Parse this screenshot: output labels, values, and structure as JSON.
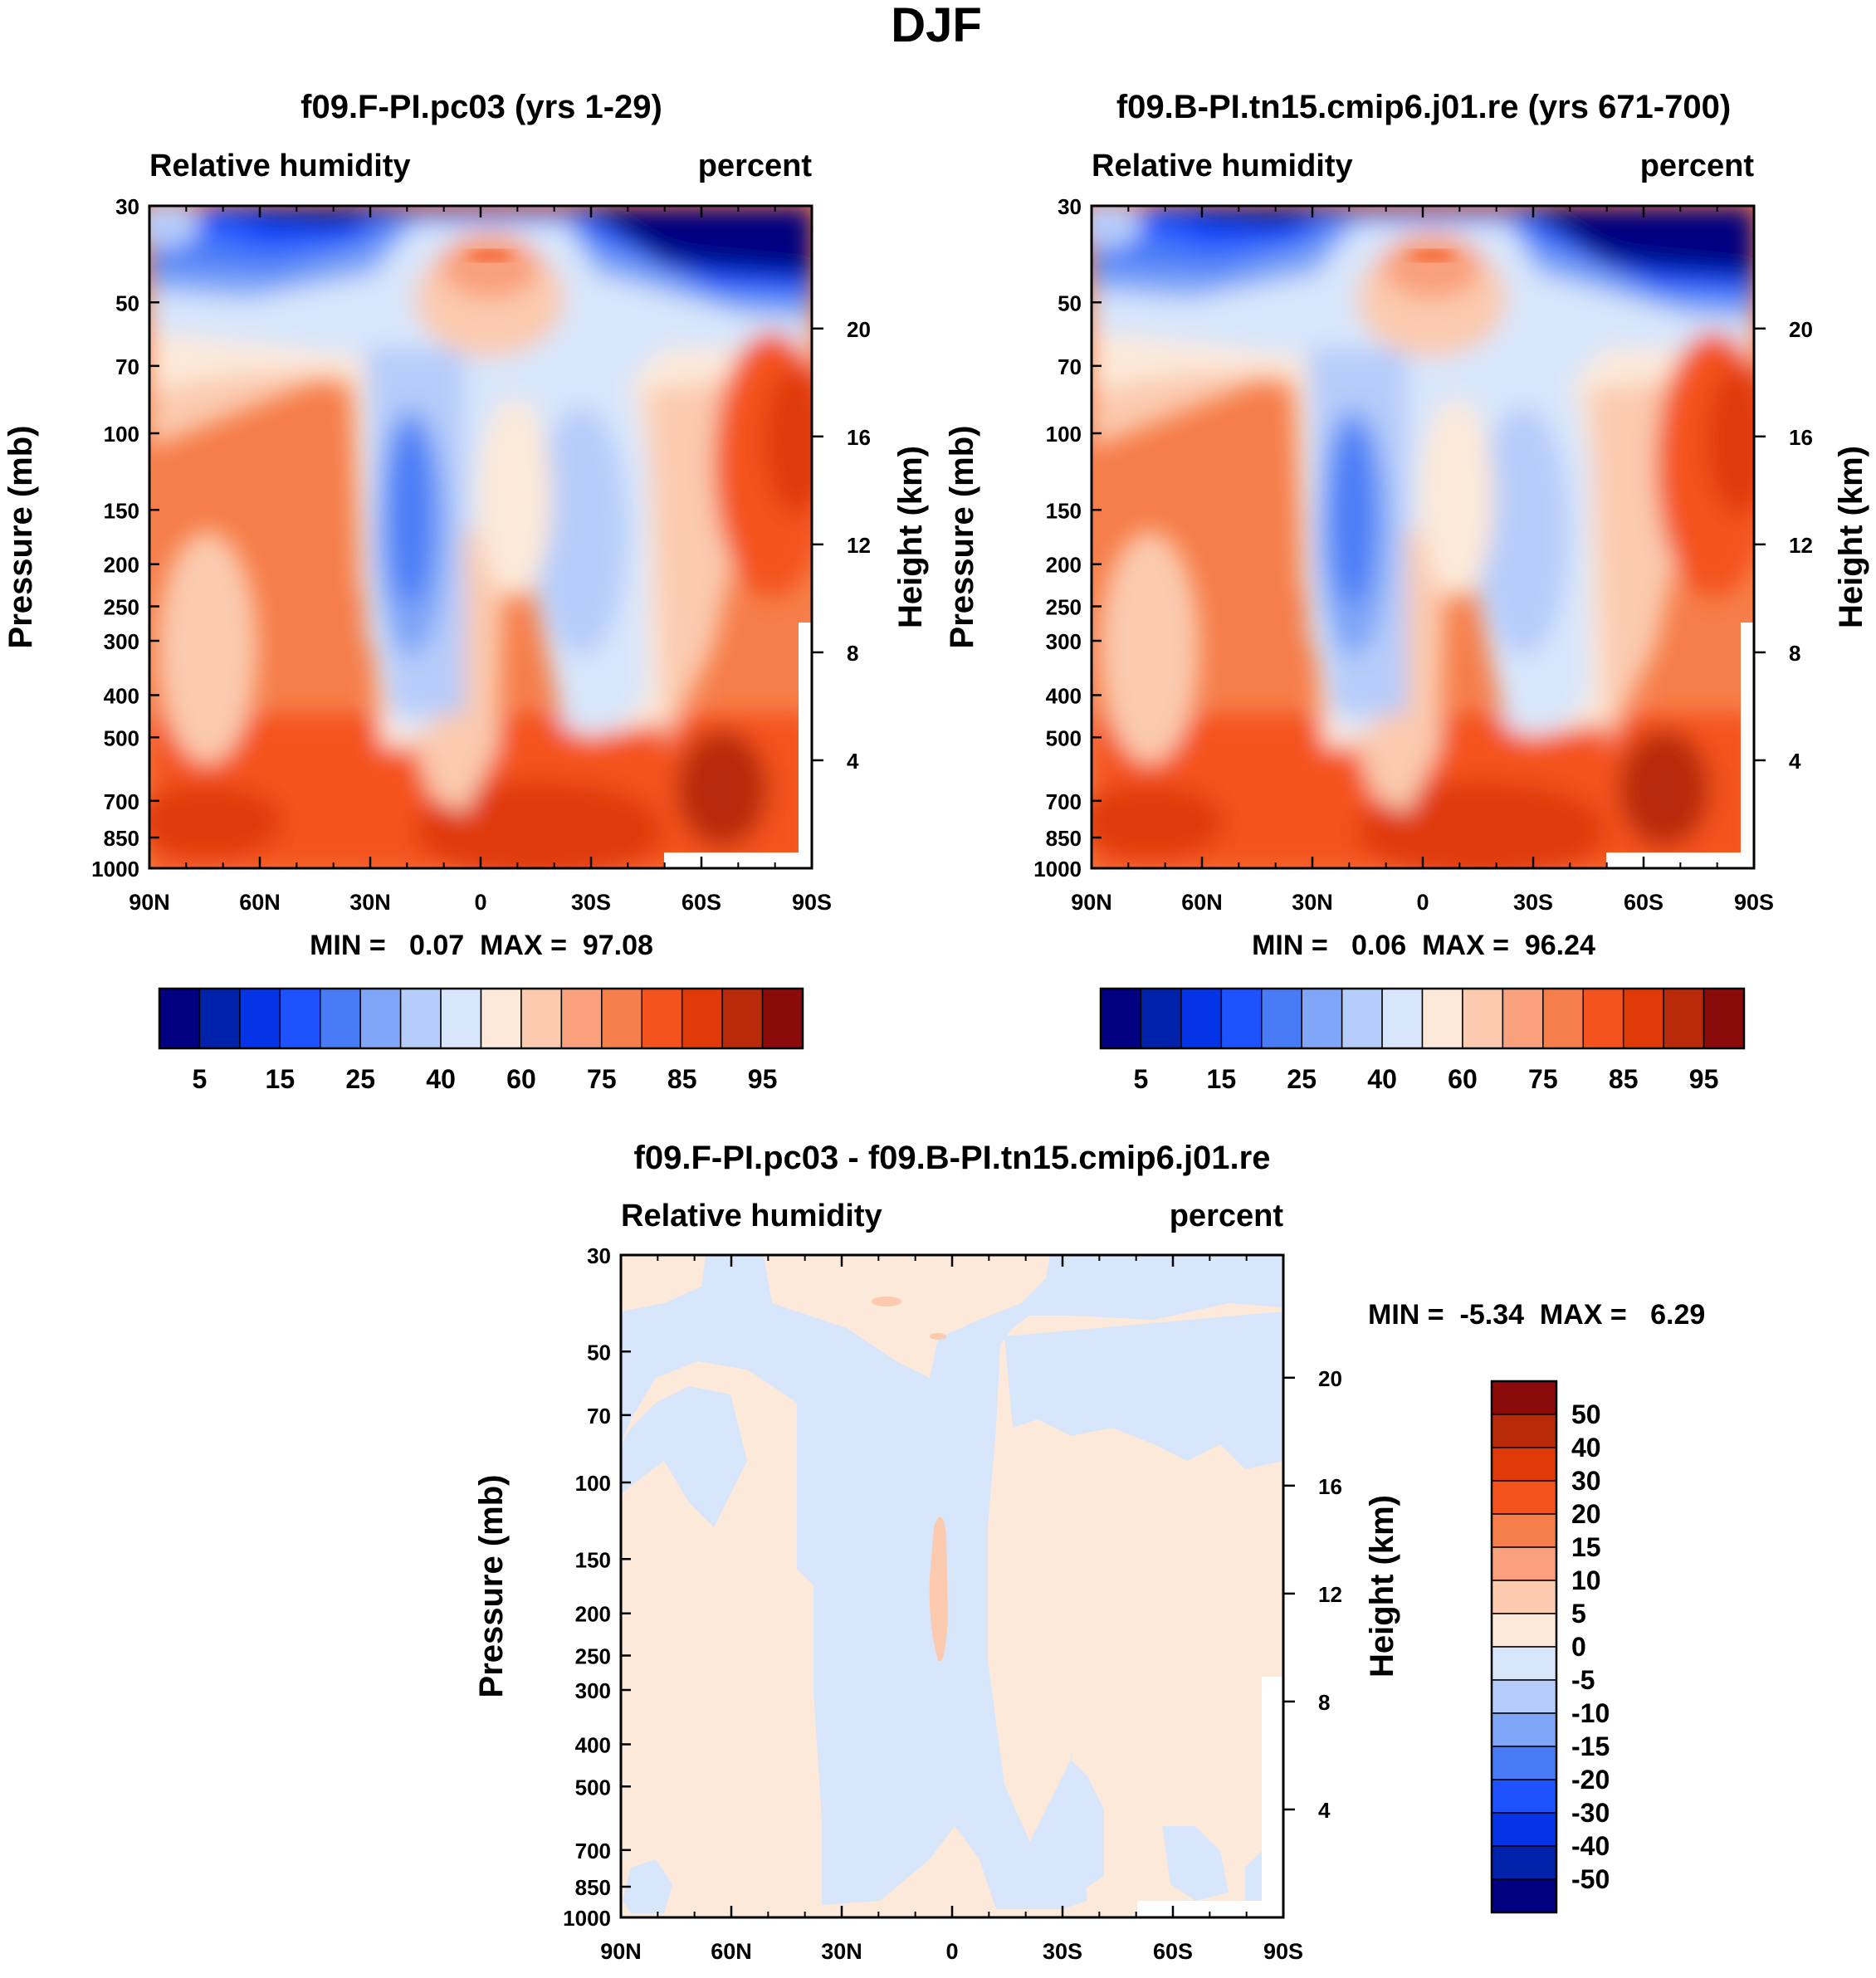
{
  "figure_title": "DJF",
  "colors": {
    "abs_scale": [
      "#000080",
      "#0022AA",
      "#0533E6",
      "#1F52FF",
      "#4A7BF7",
      "#7FA6F7",
      "#B6CCFA",
      "#D8E6FB",
      "#FCE9D9",
      "#FBCAAF",
      "#F9A07C",
      "#F67E4A",
      "#F4531E",
      "#E03A08",
      "#B82A0A",
      "#8B0A0A"
    ],
    "diff_scale": [
      "#000080",
      "#0022AA",
      "#0533E6",
      "#1F52FF",
      "#4A7BF7",
      "#7FA6F7",
      "#B6CCFA",
      "#D8E6FB",
      "#FCE9D9",
      "#FBCAAF",
      "#F9A07C",
      "#F67E4A",
      "#F4531E",
      "#E03A08",
      "#B82A0A",
      "#8B0A0A"
    ]
  },
  "panels": [
    {
      "title": "f09.F-PI.pc03 (yrs 1-29)",
      "left_label": "Relative humidity",
      "right_label": "percent",
      "ylabel": "Pressure (mb)",
      "y2label": "Height (km)",
      "minmax": "MIN =   0.07  MAX =  97.08"
    },
    {
      "title": "f09.B-PI.tn15.cmip6.j01.re (yrs 671-700)",
      "left_label": "Relative humidity",
      "right_label": "percent",
      "ylabel": "Pressure (mb)",
      "y2label": "Height (km)",
      "minmax": "MIN =   0.06  MAX =  96.24"
    },
    {
      "title": "f09.F-PI.pc03 - f09.B-PI.tn15.cmip6.j01.re",
      "left_label": "Relative humidity",
      "right_label": "percent",
      "ylabel": "Pressure (mb)",
      "y2label": "Height (km)",
      "minmax": "MIN =  -5.34  MAX =   6.29"
    }
  ],
  "chart_data": [
    {
      "type": "heatmap",
      "title": "f09.F-PI.pc03 (yrs 1-29)",
      "variable": "Relative humidity",
      "units": "percent",
      "xlabel": "",
      "ylabel": "Pressure (mb)",
      "y2label": "Height (km)",
      "x_ticks": [
        "90N",
        "60N",
        "30N",
        "0",
        "30S",
        "60S",
        "90S"
      ],
      "y_ticks": [
        30,
        50,
        70,
        100,
        150,
        200,
        250,
        300,
        400,
        500,
        700,
        850,
        1000
      ],
      "y2_ticks": [
        20,
        16,
        12,
        8,
        4
      ],
      "xlim": [
        90,
        -90
      ],
      "ylim": [
        1000,
        30
      ],
      "legend_labels": [
        "5",
        "15",
        "25",
        "40",
        "60",
        "75",
        "85",
        "95"
      ],
      "min": 0.07,
      "max": 97.08
    },
    {
      "type": "heatmap",
      "title": "f09.B-PI.tn15.cmip6.j01.re (yrs 671-700)",
      "variable": "Relative humidity",
      "units": "percent",
      "xlabel": "",
      "ylabel": "Pressure (mb)",
      "y2label": "Height (km)",
      "x_ticks": [
        "90N",
        "60N",
        "30N",
        "0",
        "30S",
        "60S",
        "90S"
      ],
      "y_ticks": [
        30,
        50,
        70,
        100,
        150,
        200,
        250,
        300,
        400,
        500,
        700,
        850,
        1000
      ],
      "y2_ticks": [
        20,
        16,
        12,
        8,
        4
      ],
      "xlim": [
        90,
        -90
      ],
      "ylim": [
        1000,
        30
      ],
      "legend_labels": [
        "5",
        "15",
        "25",
        "40",
        "60",
        "75",
        "85",
        "95"
      ],
      "min": 0.06,
      "max": 96.24
    },
    {
      "type": "heatmap",
      "title": "f09.F-PI.pc03 - f09.B-PI.tn15.cmip6.j01.re",
      "variable": "Relative humidity",
      "units": "percent",
      "xlabel": "",
      "ylabel": "Pressure (mb)",
      "y2label": "Height (km)",
      "x_ticks": [
        "90N",
        "60N",
        "30N",
        "0",
        "30S",
        "60S",
        "90S"
      ],
      "y_ticks": [
        30,
        50,
        70,
        100,
        150,
        200,
        250,
        300,
        400,
        500,
        700,
        850,
        1000
      ],
      "y2_ticks": [
        20,
        16,
        12,
        8,
        4
      ],
      "xlim": [
        90,
        -90
      ],
      "ylim": [
        1000,
        30
      ],
      "legend_labels": [
        "50",
        "40",
        "30",
        "20",
        "15",
        "10",
        "5",
        "0",
        "-5",
        "-10",
        "-15",
        "-20",
        "-30",
        "-40",
        "-50"
      ],
      "min": -5.34,
      "max": 6.29
    }
  ]
}
